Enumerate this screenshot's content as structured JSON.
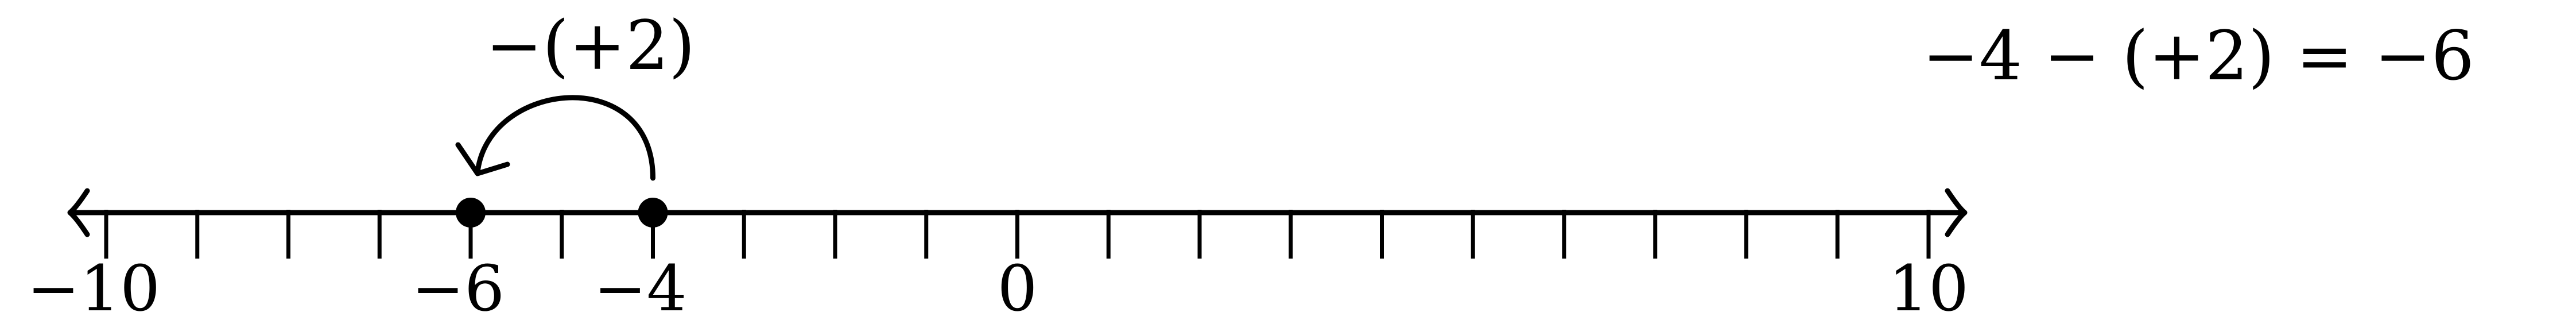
{
  "number_line": {
    "min": -10,
    "max": 10,
    "step": 1,
    "arrows": "both",
    "labeled_ticks": [
      {
        "value": -10,
        "text": "−10"
      },
      {
        "value": -6,
        "text": "−6"
      },
      {
        "value": -4,
        "text": "−4"
      },
      {
        "value": 0,
        "text": "0"
      },
      {
        "value": 10,
        "text": "10"
      }
    ]
  },
  "points": [
    {
      "value": -6
    },
    {
      "value": -4
    }
  ],
  "jump": {
    "from": -4,
    "to": -6,
    "label": "−(+2)"
  },
  "equation": {
    "text": "−4 − (+2) = −6"
  },
  "colors": {
    "line": "#000000",
    "background": "#ffffff"
  }
}
